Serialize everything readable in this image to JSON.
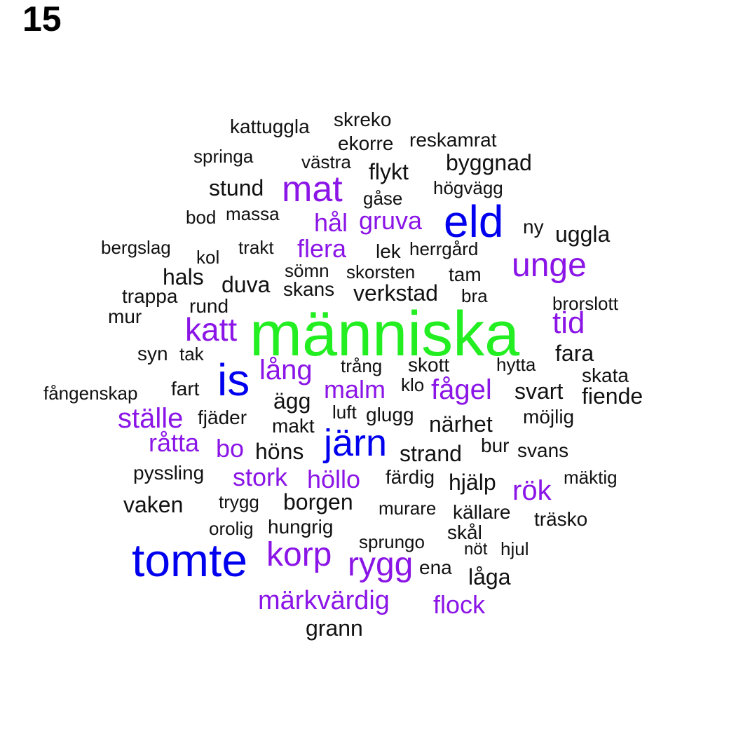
{
  "panel_label": "15",
  "colors": {
    "green": "#22ee22",
    "blue": "#0000ee",
    "purple": "#8a15e6",
    "black": "#111111"
  },
  "words": [
    {
      "text": "människa",
      "color": "green"
    },
    {
      "text": "tomte",
      "color": "blue"
    },
    {
      "text": "eld",
      "color": "blue"
    },
    {
      "text": "is",
      "color": "blue"
    },
    {
      "text": "järn",
      "color": "blue"
    },
    {
      "text": "mat",
      "color": "purple"
    },
    {
      "text": "unge",
      "color": "purple"
    },
    {
      "text": "katt",
      "color": "purple"
    },
    {
      "text": "tid",
      "color": "purple"
    },
    {
      "text": "korp",
      "color": "purple"
    },
    {
      "text": "rygg",
      "color": "purple"
    },
    {
      "text": "ställe",
      "color": "purple"
    },
    {
      "text": "fågel",
      "color": "purple"
    },
    {
      "text": "lång",
      "color": "purple"
    },
    {
      "text": "rök",
      "color": "purple"
    },
    {
      "text": "råtta",
      "color": "purple"
    },
    {
      "text": "bo",
      "color": "purple"
    },
    {
      "text": "märkvärdig",
      "color": "purple"
    },
    {
      "text": "höllo",
      "color": "purple"
    },
    {
      "text": "stork",
      "color": "purple"
    },
    {
      "text": "malm",
      "color": "purple"
    },
    {
      "text": "gruva",
      "color": "purple"
    },
    {
      "text": "hål",
      "color": "purple"
    },
    {
      "text": "flera",
      "color": "purple"
    },
    {
      "text": "flock",
      "color": "purple"
    },
    {
      "text": "stund",
      "color": "black"
    },
    {
      "text": "flykt",
      "color": "black"
    },
    {
      "text": "byggnad",
      "color": "black"
    },
    {
      "text": "verkstad",
      "color": "black"
    },
    {
      "text": "duva",
      "color": "black"
    },
    {
      "text": "ägg",
      "color": "black"
    },
    {
      "text": "svart",
      "color": "black"
    },
    {
      "text": "fiende",
      "color": "black"
    },
    {
      "text": "närhet",
      "color": "black"
    },
    {
      "text": "strand",
      "color": "black"
    },
    {
      "text": "höns",
      "color": "black"
    },
    {
      "text": "borgen",
      "color": "black"
    },
    {
      "text": "hjälp",
      "color": "black"
    },
    {
      "text": "vaken",
      "color": "black"
    },
    {
      "text": "grann",
      "color": "black"
    },
    {
      "text": "låga",
      "color": "black"
    },
    {
      "text": "fara",
      "color": "black"
    },
    {
      "text": "uggla",
      "color": "black"
    },
    {
      "text": "hals",
      "color": "black"
    },
    {
      "text": "skans",
      "color": "black"
    },
    {
      "text": "rund",
      "color": "black"
    },
    {
      "text": "mur",
      "color": "black"
    },
    {
      "text": "fart",
      "color": "black"
    },
    {
      "text": "makt",
      "color": "black"
    },
    {
      "text": "bur",
      "color": "black"
    },
    {
      "text": "svans",
      "color": "black"
    },
    {
      "text": "kattuggla",
      "color": "black"
    },
    {
      "text": "skreko",
      "color": "black"
    },
    {
      "text": "ekorre",
      "color": "black"
    },
    {
      "text": "reskamrat",
      "color": "black"
    },
    {
      "text": "springa",
      "color": "black"
    },
    {
      "text": "västra",
      "color": "black"
    },
    {
      "text": "högvägg",
      "color": "black"
    },
    {
      "text": "gåse",
      "color": "black"
    },
    {
      "text": "bod",
      "color": "black"
    },
    {
      "text": "massa",
      "color": "black"
    },
    {
      "text": "ny",
      "color": "black"
    },
    {
      "text": "bergslag",
      "color": "black"
    },
    {
      "text": "kol",
      "color": "black"
    },
    {
      "text": "trakt",
      "color": "black"
    },
    {
      "text": "lek",
      "color": "black"
    },
    {
      "text": "herrgård",
      "color": "black"
    },
    {
      "text": "sömn",
      "color": "black"
    },
    {
      "text": "skorsten",
      "color": "black"
    },
    {
      "text": "tam",
      "color": "black"
    },
    {
      "text": "trappa",
      "color": "black"
    },
    {
      "text": "bra",
      "color": "black"
    },
    {
      "text": "brorslott",
      "color": "black"
    },
    {
      "text": "syn",
      "color": "black"
    },
    {
      "text": "tak",
      "color": "black"
    },
    {
      "text": "trång",
      "color": "black"
    },
    {
      "text": "skott",
      "color": "black"
    },
    {
      "text": "hytta",
      "color": "black"
    },
    {
      "text": "skata",
      "color": "black"
    },
    {
      "text": "fångenskap",
      "color": "black"
    },
    {
      "text": "klo",
      "color": "black"
    },
    {
      "text": "luft",
      "color": "black"
    },
    {
      "text": "glugg",
      "color": "black"
    },
    {
      "text": "möjlig",
      "color": "black"
    },
    {
      "text": "fjäder",
      "color": "black"
    },
    {
      "text": "pyssling",
      "color": "black"
    },
    {
      "text": "färdig",
      "color": "black"
    },
    {
      "text": "mäktig",
      "color": "black"
    },
    {
      "text": "trygg",
      "color": "black"
    },
    {
      "text": "murare",
      "color": "black"
    },
    {
      "text": "källare",
      "color": "black"
    },
    {
      "text": "träsko",
      "color": "black"
    },
    {
      "text": "orolig",
      "color": "black"
    },
    {
      "text": "hungrig",
      "color": "black"
    },
    {
      "text": "sprungo",
      "color": "black"
    },
    {
      "text": "skål",
      "color": "black"
    },
    {
      "text": "nöt",
      "color": "black"
    },
    {
      "text": "hjul",
      "color": "black"
    },
    {
      "text": "ena",
      "color": "black"
    }
  ]
}
